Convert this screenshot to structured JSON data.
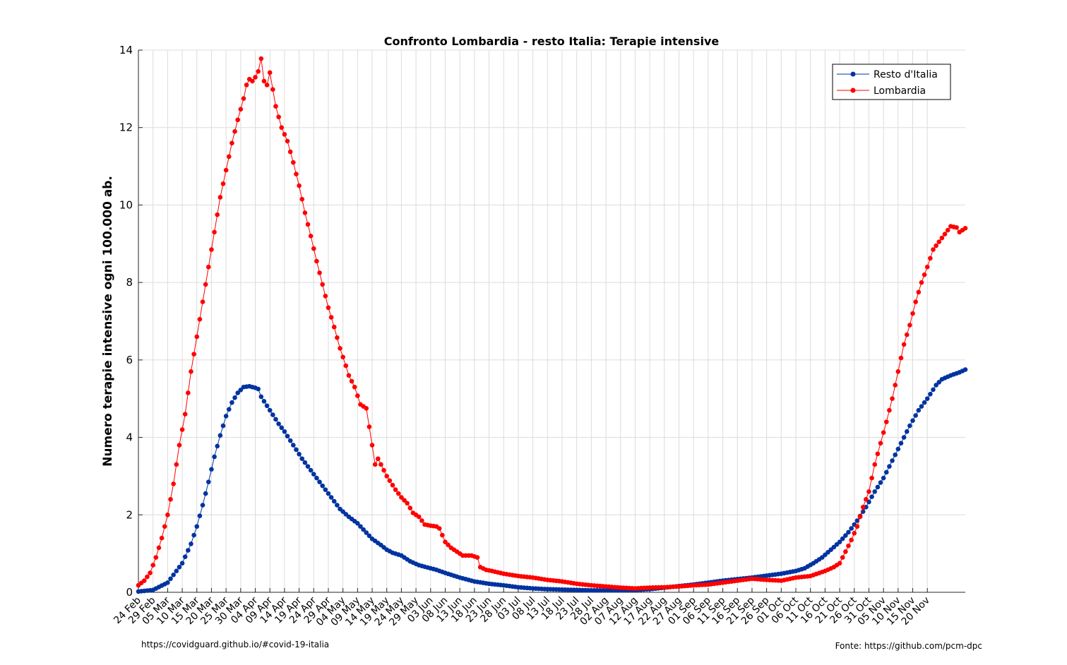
{
  "chart_data": {
    "type": "line",
    "title": "Confronto Lombardia - resto Italia: Terapie intensive",
    "xlabel": "",
    "ylabel": "Numero terapie intensive ogni 100.000 ab.",
    "ylim": [
      0,
      14
    ],
    "yticks": [
      0,
      2,
      4,
      6,
      8,
      10,
      12,
      14
    ],
    "grid": true,
    "legend_position": "top-right",
    "x_ticks": [
      "24 Feb",
      "29 Feb",
      "05 Mar",
      "10 Mar",
      "15 Mar",
      "20 Mar",
      "25 Mar",
      "30 Mar",
      "04 Apr",
      "09 Apr",
      "14 Apr",
      "19 Apr",
      "24 Apr",
      "29 Apr",
      "04 May",
      "09 May",
      "14 May",
      "19 May",
      "24 May",
      "29 May",
      "03 Jun",
      "08 Jun",
      "13 Jun",
      "18 Jun",
      "23 Jun",
      "28 Jun",
      "03 Jul",
      "08 Jul",
      "13 Jul",
      "18 Jul",
      "23 Jul",
      "28 Jul",
      "02 Aug",
      "07 Aug",
      "12 Aug",
      "17 Aug",
      "22 Aug",
      "27 Aug",
      "01 Sep",
      "06 Sep",
      "11 Sep",
      "16 Sep",
      "21 Sep",
      "26 Sep",
      "01 Oct",
      "06 Oct",
      "11 Oct",
      "16 Oct",
      "21 Oct",
      "26 Oct",
      "31 Oct",
      "05 Nov",
      "10 Nov",
      "15 Nov",
      "20 Nov"
    ],
    "x_start": "24 Feb",
    "series": [
      {
        "name": "Resto d'Italia",
        "color": "#0033a0",
        "points": [
          [
            0,
            0.02
          ],
          [
            5,
            0.06
          ],
          [
            10,
            0.25
          ],
          [
            12,
            0.45
          ],
          [
            15,
            0.75
          ],
          [
            18,
            1.25
          ],
          [
            20,
            1.7
          ],
          [
            22,
            2.25
          ],
          [
            24,
            2.85
          ],
          [
            26,
            3.5
          ],
          [
            28,
            4.05
          ],
          [
            30,
            4.55
          ],
          [
            32,
            4.9
          ],
          [
            34,
            5.15
          ],
          [
            36,
            5.3
          ],
          [
            38,
            5.32
          ],
          [
            40,
            5.28
          ],
          [
            41,
            5.25
          ],
          [
            42,
            5.05
          ],
          [
            45,
            4.7
          ],
          [
            48,
            4.35
          ],
          [
            50,
            4.15
          ],
          [
            53,
            3.8
          ],
          [
            56,
            3.45
          ],
          [
            60,
            3.05
          ],
          [
            63,
            2.75
          ],
          [
            66,
            2.45
          ],
          [
            69,
            2.15
          ],
          [
            72,
            1.95
          ],
          [
            75,
            1.78
          ],
          [
            77,
            1.62
          ],
          [
            80,
            1.38
          ],
          [
            83,
            1.22
          ],
          [
            85,
            1.1
          ],
          [
            87,
            1.02
          ],
          [
            90,
            0.95
          ],
          [
            93,
            0.8
          ],
          [
            96,
            0.7
          ],
          [
            99,
            0.64
          ],
          [
            102,
            0.58
          ],
          [
            105,
            0.5
          ],
          [
            110,
            0.38
          ],
          [
            115,
            0.28
          ],
          [
            120,
            0.22
          ],
          [
            125,
            0.18
          ],
          [
            130,
            0.13
          ],
          [
            135,
            0.1
          ],
          [
            140,
            0.08
          ],
          [
            145,
            0.07
          ],
          [
            150,
            0.06
          ],
          [
            155,
            0.05
          ],
          [
            160,
            0.05
          ],
          [
            165,
            0.05
          ],
          [
            170,
            0.06
          ],
          [
            175,
            0.08
          ],
          [
            180,
            0.12
          ],
          [
            185,
            0.16
          ],
          [
            190,
            0.2
          ],
          [
            195,
            0.25
          ],
          [
            200,
            0.3
          ],
          [
            205,
            0.34
          ],
          [
            210,
            0.38
          ],
          [
            215,
            0.43
          ],
          [
            220,
            0.48
          ],
          [
            225,
            0.55
          ],
          [
            228,
            0.62
          ],
          [
            231,
            0.75
          ],
          [
            234,
            0.9
          ],
          [
            237,
            1.1
          ],
          [
            240,
            1.3
          ],
          [
            243,
            1.55
          ],
          [
            246,
            1.85
          ],
          [
            249,
            2.2
          ],
          [
            252,
            2.6
          ],
          [
            255,
            2.95
          ],
          [
            258,
            3.4
          ],
          [
            261,
            3.85
          ],
          [
            264,
            4.3
          ],
          [
            267,
            4.7
          ],
          [
            270,
            5.0
          ],
          [
            273,
            5.35
          ],
          [
            275,
            5.5
          ],
          [
            278,
            5.6
          ],
          [
            281,
            5.68
          ],
          [
            283,
            5.75
          ]
        ]
      },
      {
        "name": "Lombardia",
        "color": "#ff0000",
        "points": [
          [
            0,
            0.18
          ],
          [
            2,
            0.3
          ],
          [
            4,
            0.5
          ],
          [
            6,
            0.9
          ],
          [
            8,
            1.4
          ],
          [
            10,
            2.0
          ],
          [
            12,
            2.8
          ],
          [
            14,
            3.8
          ],
          [
            16,
            4.6
          ],
          [
            18,
            5.7
          ],
          [
            20,
            6.6
          ],
          [
            22,
            7.5
          ],
          [
            24,
            8.4
          ],
          [
            26,
            9.3
          ],
          [
            28,
            10.2
          ],
          [
            30,
            10.9
          ],
          [
            32,
            11.6
          ],
          [
            34,
            12.2
          ],
          [
            36,
            12.75
          ],
          [
            37,
            13.1
          ],
          [
            38,
            13.25
          ],
          [
            39,
            13.2
          ],
          [
            40,
            13.3
          ],
          [
            41,
            13.45
          ],
          [
            42,
            13.78
          ],
          [
            43,
            13.2
          ],
          [
            44,
            13.1
          ],
          [
            45,
            13.42
          ],
          [
            47,
            12.55
          ],
          [
            49,
            12.0
          ],
          [
            51,
            11.65
          ],
          [
            53,
            11.1
          ],
          [
            55,
            10.5
          ],
          [
            57,
            9.8
          ],
          [
            59,
            9.2
          ],
          [
            61,
            8.55
          ],
          [
            63,
            7.95
          ],
          [
            65,
            7.35
          ],
          [
            67,
            6.85
          ],
          [
            69,
            6.3
          ],
          [
            71,
            5.85
          ],
          [
            72,
            5.6
          ],
          [
            74,
            5.3
          ],
          [
            76,
            4.85
          ],
          [
            78,
            4.75
          ],
          [
            80,
            3.8
          ],
          [
            81,
            3.3
          ],
          [
            82,
            3.45
          ],
          [
            85,
            3.0
          ],
          [
            88,
            2.65
          ],
          [
            90,
            2.45
          ],
          [
            92,
            2.3
          ],
          [
            94,
            2.05
          ],
          [
            96,
            1.95
          ],
          [
            98,
            1.75
          ],
          [
            100,
            1.72
          ],
          [
            102,
            1.7
          ],
          [
            103,
            1.65
          ],
          [
            105,
            1.3
          ],
          [
            107,
            1.15
          ],
          [
            109,
            1.05
          ],
          [
            111,
            0.95
          ],
          [
            114,
            0.95
          ],
          [
            116,
            0.9
          ],
          [
            117,
            0.65
          ],
          [
            119,
            0.58
          ],
          [
            121,
            0.55
          ],
          [
            125,
            0.48
          ],
          [
            130,
            0.42
          ],
          [
            135,
            0.38
          ],
          [
            140,
            0.32
          ],
          [
            145,
            0.28
          ],
          [
            150,
            0.22
          ],
          [
            155,
            0.18
          ],
          [
            160,
            0.15
          ],
          [
            165,
            0.12
          ],
          [
            170,
            0.1
          ],
          [
            175,
            0.12
          ],
          [
            180,
            0.13
          ],
          [
            185,
            0.15
          ],
          [
            190,
            0.18
          ],
          [
            195,
            0.2
          ],
          [
            200,
            0.25
          ],
          [
            205,
            0.3
          ],
          [
            210,
            0.35
          ],
          [
            215,
            0.32
          ],
          [
            220,
            0.3
          ],
          [
            225,
            0.38
          ],
          [
            230,
            0.42
          ],
          [
            235,
            0.55
          ],
          [
            238,
            0.65
          ],
          [
            240,
            0.75
          ],
          [
            242,
            1.05
          ],
          [
            244,
            1.35
          ],
          [
            246,
            1.7
          ],
          [
            248,
            2.2
          ],
          [
            250,
            2.6
          ],
          [
            252,
            3.3
          ],
          [
            254,
            3.85
          ],
          [
            256,
            4.4
          ],
          [
            258,
            5.0
          ],
          [
            260,
            5.7
          ],
          [
            262,
            6.4
          ],
          [
            264,
            6.9
          ],
          [
            266,
            7.5
          ],
          [
            268,
            8.0
          ],
          [
            270,
            8.4
          ],
          [
            272,
            8.85
          ],
          [
            274,
            9.05
          ],
          [
            276,
            9.25
          ],
          [
            278,
            9.45
          ],
          [
            280,
            9.42
          ],
          [
            281,
            9.3
          ],
          [
            282,
            9.35
          ],
          [
            283,
            9.4
          ]
        ]
      }
    ]
  },
  "annotations": {
    "source_left": "https://covidguard.github.io/#covid-19-italia",
    "source_right": "Fonte: https://github.com/pcm-dpc"
  }
}
